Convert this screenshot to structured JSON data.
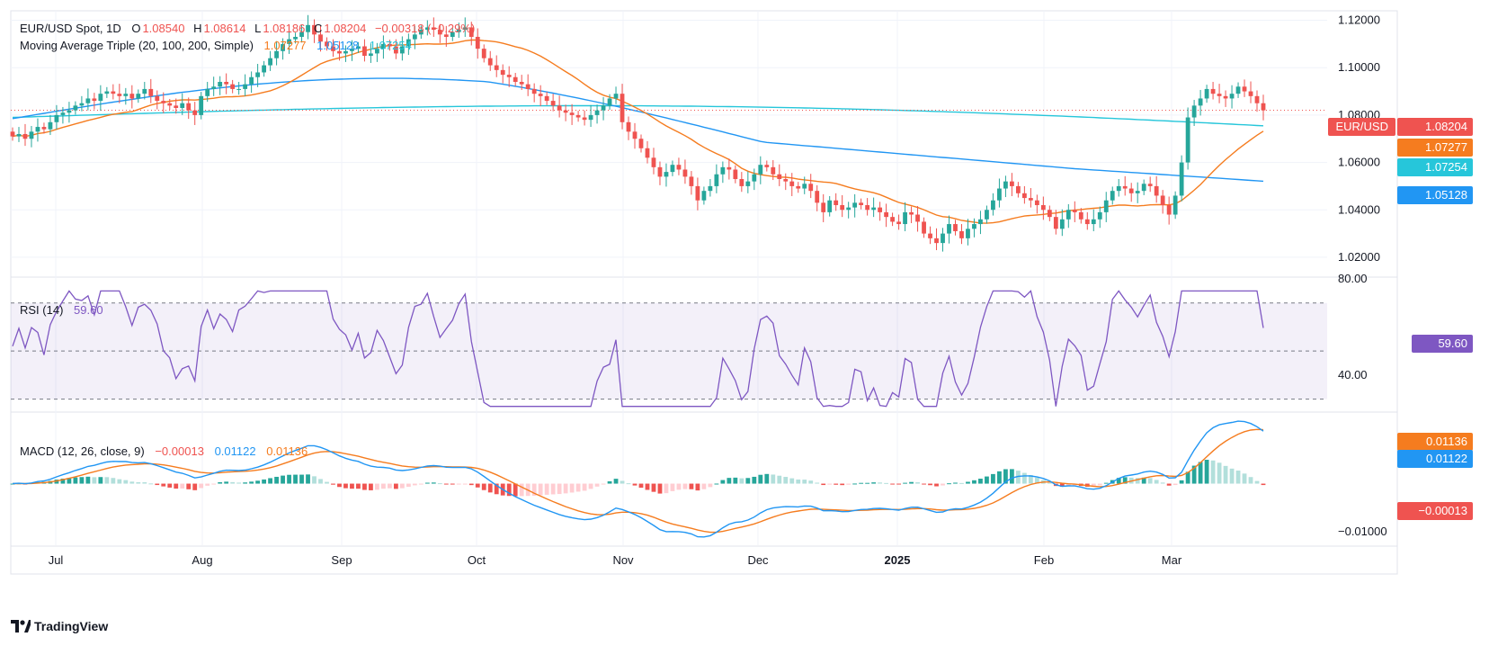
{
  "header": {
    "symbol": "EUR/USD Spot, 1D",
    "o_label": "O",
    "open": "1.08540",
    "h_label": "H",
    "high": "1.08614",
    "l_label": "L",
    "low": "1.08186",
    "c_label": "C",
    "close": "1.08204",
    "change": "−0.00318 (−0.29%)"
  },
  "ma_legend": {
    "label": "Moving Average Triple (20, 100, 200, Simple)",
    "ma20": "1.07277",
    "ma100": "1.05128",
    "ma200": "1.07254"
  },
  "rsi_legend": {
    "label": "RSI (14)",
    "value": "59.60"
  },
  "macd_legend": {
    "label": "MACD (12, 26, close, 9)",
    "hist": "−0.00013",
    "macd": "0.01122",
    "signal": "0.01136"
  },
  "price_tags": {
    "symbol_tag": "EUR/USD",
    "last": "1.08204",
    "ma20": "1.07277",
    "ma200": "1.07254",
    "ma100": "1.05128",
    "rsi": "59.60",
    "signal": "0.01136",
    "macd": "0.01122",
    "hist": "−0.00013"
  },
  "colors": {
    "up": "#26a69a",
    "down": "#ef5350",
    "ma20": "#f57c1f",
    "ma100": "#2196f3",
    "ma200": "#26c6da",
    "rsi": "#7e57c2",
    "macd": "#2196f3",
    "signal": "#f57c1f"
  },
  "footer": {
    "brand": "TradingView"
  },
  "chart_data": {
    "type": "candlestick",
    "x_ticks": [
      "Jul",
      "Aug",
      "Sep",
      "Oct",
      "Nov",
      "Dec",
      "2025",
      "Feb",
      "Mar"
    ],
    "price_axis": {
      "ticks": [
        "1.12000",
        "1.10000",
        "1.08000",
        "1.06000",
        "1.04000",
        "1.02000"
      ],
      "range": [
        1.012,
        1.124
      ]
    },
    "rsi_axis": {
      "ticks": [
        "80.00",
        "40.00"
      ],
      "levels": [
        70,
        50,
        30
      ],
      "range": [
        25,
        80
      ]
    },
    "macd_axis": {
      "ticks": [
        "-0.01000"
      ],
      "range": [
        -0.0128,
        0.0145
      ]
    },
    "close_series": [
      1.071,
      1.072,
      1.07,
      1.073,
      1.075,
      1.074,
      1.077,
      1.08,
      1.081,
      1.082,
      1.084,
      1.085,
      1.087,
      1.086,
      1.089,
      1.09,
      1.089,
      1.088,
      1.089,
      1.087,
      1.089,
      1.091,
      1.088,
      1.086,
      1.085,
      1.084,
      1.083,
      1.085,
      1.082,
      1.08,
      1.088,
      1.091,
      1.092,
      1.094,
      1.093,
      1.091,
      1.091,
      1.093,
      1.096,
      1.098,
      1.101,
      1.104,
      1.107,
      1.11,
      1.112,
      1.113,
      1.115,
      1.118,
      1.114,
      1.111,
      1.109,
      1.107,
      1.106,
      1.107,
      1.108,
      1.109,
      1.105,
      1.106,
      1.108,
      1.11,
      1.109,
      1.106,
      1.109,
      1.112,
      1.114,
      1.116,
      1.117,
      1.116,
      1.114,
      1.113,
      1.115,
      1.116,
      1.117,
      1.113,
      1.108,
      1.104,
      1.101,
      1.099,
      1.097,
      1.096,
      1.094,
      1.093,
      1.091,
      1.089,
      1.088,
      1.086,
      1.084,
      1.082,
      1.081,
      1.08,
      1.079,
      1.078,
      1.08,
      1.082,
      1.084,
      1.087,
      1.089,
      1.077,
      1.073,
      1.07,
      1.066,
      1.062,
      1.058,
      1.054,
      1.056,
      1.059,
      1.057,
      1.054,
      1.05,
      1.044,
      1.048,
      1.05,
      1.055,
      1.058,
      1.057,
      1.053,
      1.05,
      1.052,
      1.055,
      1.059,
      1.058,
      1.055,
      1.053,
      1.052,
      1.05,
      1.049,
      1.051,
      1.048,
      1.043,
      1.039,
      1.044,
      1.042,
      1.04,
      1.041,
      1.043,
      1.042,
      1.04,
      1.041,
      1.039,
      1.037,
      1.035,
      1.034,
      1.039,
      1.038,
      1.035,
      1.03,
      1.028,
      1.026,
      1.03,
      1.034,
      1.031,
      1.028,
      1.032,
      1.034,
      1.036,
      1.04,
      1.044,
      1.049,
      1.052,
      1.05,
      1.047,
      1.045,
      1.044,
      1.042,
      1.04,
      1.037,
      1.032,
      1.036,
      1.04,
      1.039,
      1.036,
      1.034,
      1.036,
      1.039,
      1.044,
      1.048,
      1.05,
      1.049,
      1.047,
      1.048,
      1.051,
      1.05,
      1.046,
      1.042,
      1.038,
      1.046,
      1.06,
      1.079,
      1.084,
      1.087,
      1.091,
      1.089,
      1.088,
      1.087,
      1.089,
      1.092,
      1.09,
      1.088,
      1.085,
      1.082
    ]
  }
}
